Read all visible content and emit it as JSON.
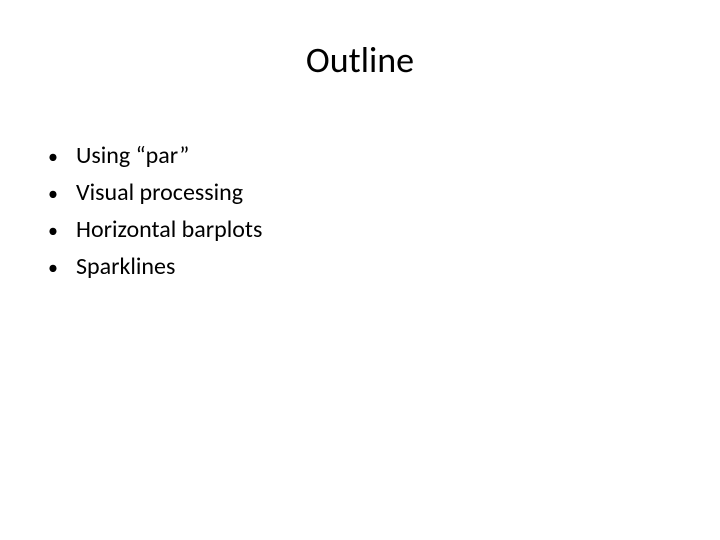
{
  "slide": {
    "title": "Outline",
    "title_fontsize": 36,
    "title_color": "#000000",
    "background_color": "#ffffff",
    "bullets": [
      {
        "text": "Using “par”"
      },
      {
        "text": "Visual processing"
      },
      {
        "text": "Horizontal barplots"
      },
      {
        "text": "Sparklines"
      }
    ],
    "bullet_fontsize": 24,
    "bullet_color": "#000000",
    "bullet_marker": "•",
    "font_family": "Calibri"
  }
}
